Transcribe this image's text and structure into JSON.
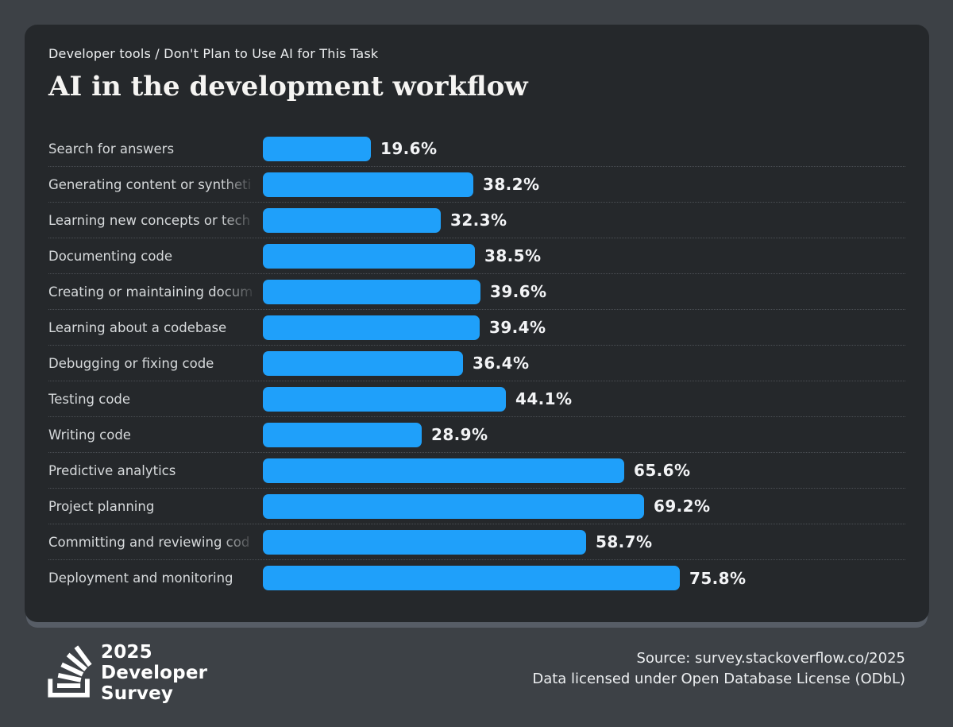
{
  "header": {
    "breadcrumb": "Developer tools / Don't Plan to Use AI for This Task",
    "title": "AI in the development workflow"
  },
  "chart_data": {
    "type": "bar",
    "orientation": "horizontal",
    "title": "AI in the development workflow",
    "subtitle": "Developer tools / Don't Plan to Use AI for This Task",
    "value_suffix": "%",
    "xlim": [
      0,
      100
    ],
    "grid": false,
    "bar_color": "#1fa0fa",
    "categories": [
      "Search for answers",
      "Generating content or syntheti",
      "Learning new concepts or tech",
      "Documenting code",
      "Creating or maintaining docum",
      "Learning about a codebase",
      "Debugging or fixing code",
      "Testing code",
      "Writing code",
      "Predictive analytics",
      "Project planning",
      "Committing and reviewing cod",
      "Deployment and monitoring"
    ],
    "values": [
      19.6,
      38.2,
      32.3,
      38.5,
      39.6,
      39.4,
      36.4,
      44.1,
      28.9,
      65.6,
      69.2,
      58.7,
      75.8
    ],
    "label_faded": [
      false,
      true,
      true,
      false,
      true,
      false,
      false,
      false,
      false,
      false,
      false,
      true,
      false
    ]
  },
  "footer": {
    "brand": {
      "icon": "stackoverflow-logo-icon",
      "line1": "2025",
      "line2": "Developer",
      "line3": "Survey"
    },
    "source_line1": "Source: survey.stackoverflow.co/2025",
    "source_line2": "Data licensed under Open Database License (ODbL)"
  },
  "colors": {
    "page_bg": "#3d4146",
    "card_bg": "#25282b",
    "bar": "#1fa0fa",
    "separator": "#4b4f54",
    "label_text": "#d7dadc",
    "value_text": "#f3f4f6",
    "title_text": "#f5f4f2",
    "footer_text": "#edeff1"
  }
}
